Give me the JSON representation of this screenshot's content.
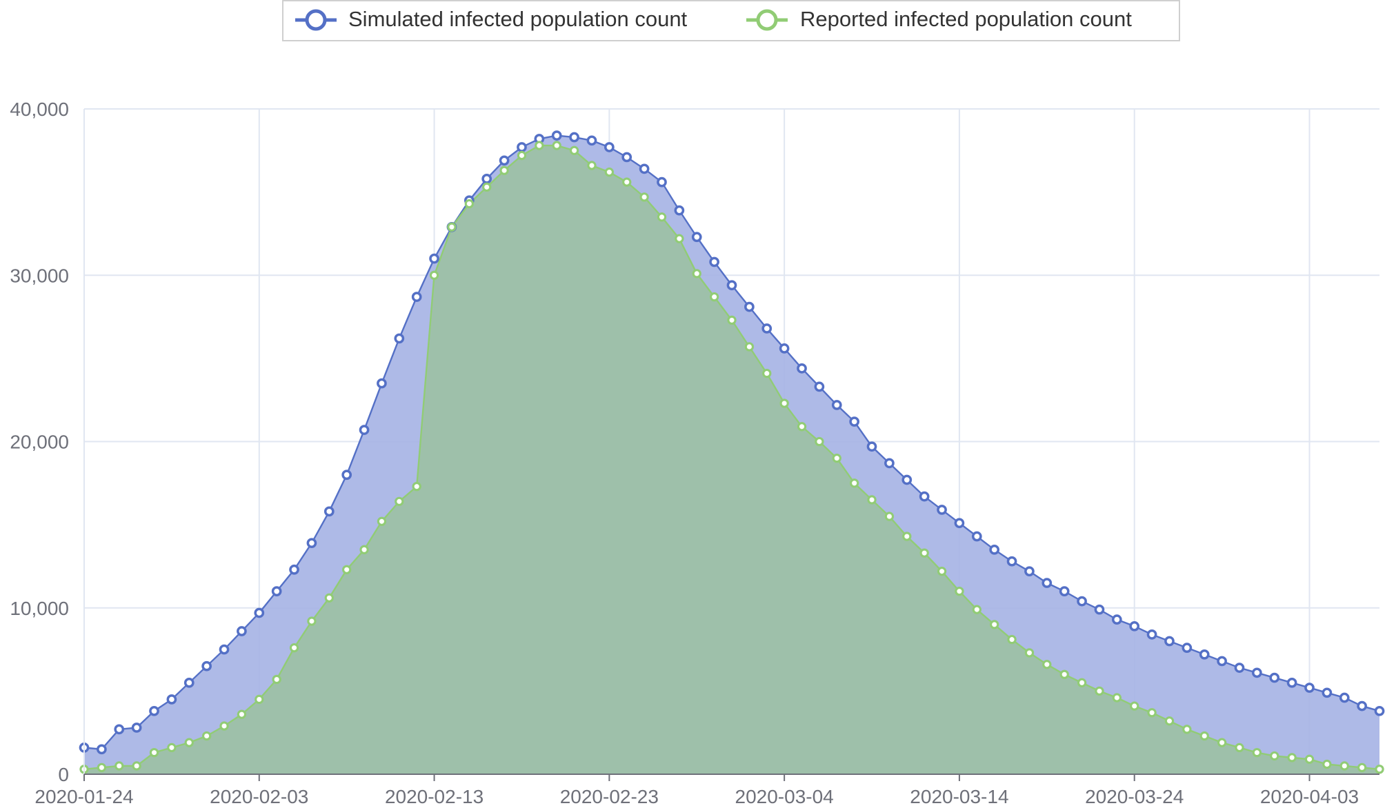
{
  "chart_data": {
    "type": "area",
    "title": "",
    "xlabel": "",
    "ylabel": "",
    "x": [
      "2020-01-24",
      "2020-01-25",
      "2020-01-26",
      "2020-01-27",
      "2020-01-28",
      "2020-01-29",
      "2020-01-30",
      "2020-01-31",
      "2020-02-01",
      "2020-02-02",
      "2020-02-03",
      "2020-02-04",
      "2020-02-05",
      "2020-02-06",
      "2020-02-07",
      "2020-02-08",
      "2020-02-09",
      "2020-02-10",
      "2020-02-11",
      "2020-02-12",
      "2020-02-13",
      "2020-02-14",
      "2020-02-15",
      "2020-02-16",
      "2020-02-17",
      "2020-02-18",
      "2020-02-19",
      "2020-02-20",
      "2020-02-21",
      "2020-02-22",
      "2020-02-23",
      "2020-02-24",
      "2020-02-25",
      "2020-02-26",
      "2020-02-27",
      "2020-02-28",
      "2020-02-29",
      "2020-03-01",
      "2020-03-02",
      "2020-03-03",
      "2020-03-04",
      "2020-03-05",
      "2020-03-06",
      "2020-03-07",
      "2020-03-08",
      "2020-03-09",
      "2020-03-10",
      "2020-03-11",
      "2020-03-12",
      "2020-03-13",
      "2020-03-14",
      "2020-03-15",
      "2020-03-16",
      "2020-03-17",
      "2020-03-18",
      "2020-03-19",
      "2020-03-20",
      "2020-03-21",
      "2020-03-22",
      "2020-03-23",
      "2020-03-24",
      "2020-03-25",
      "2020-03-26",
      "2020-03-27",
      "2020-03-28",
      "2020-03-29",
      "2020-03-30",
      "2020-03-31",
      "2020-04-01",
      "2020-04-02",
      "2020-04-03",
      "2020-04-04",
      "2020-04-05",
      "2020-04-06",
      "2020-04-07"
    ],
    "x_tick_labels": [
      "2020-01-24",
      "2020-02-03",
      "2020-02-13",
      "2020-02-23",
      "2020-03-04",
      "2020-03-14",
      "2020-03-24",
      "2020-04-03"
    ],
    "y_tick_labels": [
      "0",
      "10,000",
      "20,000",
      "30,000",
      "40,000"
    ],
    "ylim": [
      0,
      40000
    ],
    "grid": true,
    "legend_position": "top-center",
    "series": [
      {
        "name": "Simulated infected population count",
        "color": "#5470c6",
        "fill": "#a7b4e5",
        "values": [
          1600,
          1500,
          2700,
          2800,
          3800,
          4500,
          5500,
          6500,
          7500,
          8600,
          9700,
          11000,
          12300,
          13900,
          15800,
          18000,
          20700,
          23500,
          26200,
          28700,
          31000,
          32900,
          34500,
          35800,
          36900,
          37700,
          38200,
          38400,
          38300,
          38100,
          37700,
          37100,
          36400,
          35600,
          33900,
          32300,
          30800,
          29400,
          28100,
          26800,
          25600,
          24400,
          23300,
          22200,
          21200,
          19700,
          18700,
          17700,
          16700,
          15900,
          15100,
          14300,
          13500,
          12800,
          12200,
          11500,
          11000,
          10400,
          9900,
          9300,
          8900,
          8400,
          8000,
          7600,
          7200,
          6800,
          6400,
          6100,
          5800,
          5500,
          5200,
          4900,
          4600,
          4100,
          3800
        ]
      },
      {
        "name": "Reported infected population count",
        "color": "#91cc75",
        "fill": "#9dc0a6",
        "values": [
          300,
          400,
          500,
          500,
          1300,
          1600,
          1900,
          2300,
          2900,
          3600,
          4500,
          5700,
          7600,
          9200,
          10600,
          12300,
          13500,
          15200,
          16400,
          17300,
          30000,
          32900,
          34300,
          35300,
          36300,
          37200,
          37800,
          37800,
          37500,
          36600,
          36200,
          35600,
          34700,
          33500,
          32200,
          30100,
          28700,
          27300,
          25700,
          24100,
          22300,
          20900,
          20000,
          19000,
          17500,
          16500,
          15500,
          14300,
          13300,
          12200,
          11000,
          9900,
          9000,
          8100,
          7300,
          6600,
          6000,
          5500,
          5000,
          4600,
          4100,
          3700,
          3200,
          2700,
          2300,
          1900,
          1600,
          1300,
          1100,
          1000,
          900,
          600,
          500,
          400,
          300
        ]
      }
    ]
  }
}
